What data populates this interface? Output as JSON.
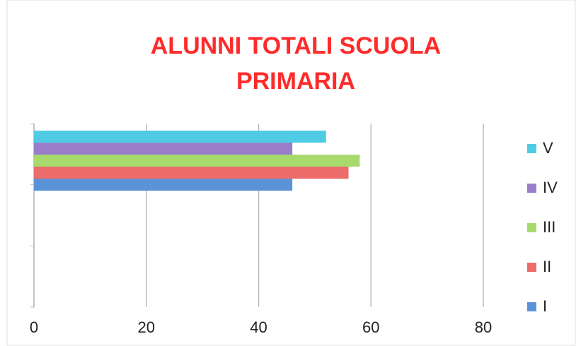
{
  "chart_data": {
    "type": "barh",
    "title": "ALUNNI TOTALI SCUOLA PRIMARIA",
    "categories": [
      null,
      null,
      null
    ],
    "series": [
      {
        "name": "I",
        "color": "#5b93d9",
        "values": [
          46,
          null,
          null
        ]
      },
      {
        "name": "II",
        "color": "#ec6b6b",
        "values": [
          56,
          null,
          null
        ]
      },
      {
        "name": "III",
        "color": "#a8d96c",
        "values": [
          58,
          null,
          null
        ]
      },
      {
        "name": "IV",
        "color": "#9b7ecb",
        "values": [
          46,
          null,
          null
        ]
      },
      {
        "name": "V",
        "color": "#4fcbe3",
        "values": [
          52,
          null,
          null
        ]
      }
    ],
    "xlim": [
      0,
      80
    ],
    "xticks": [
      0,
      20,
      40,
      60,
      80
    ],
    "grid": true,
    "legend": "right"
  }
}
